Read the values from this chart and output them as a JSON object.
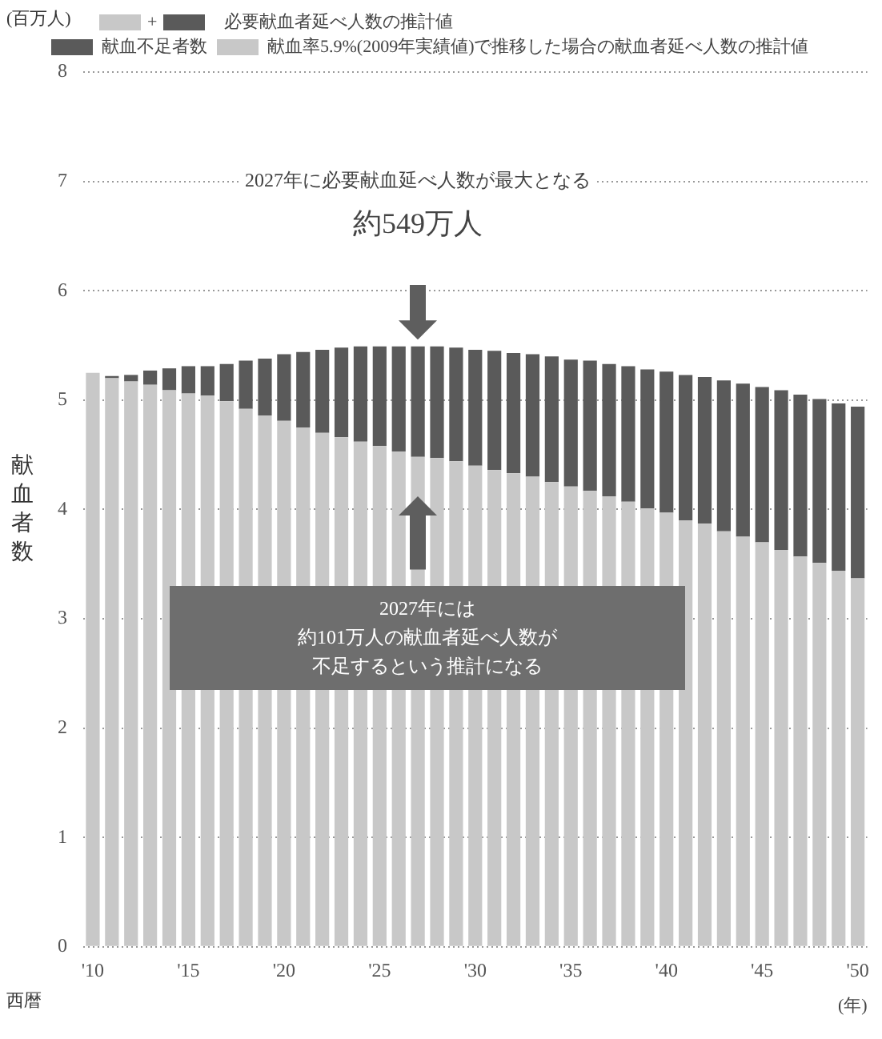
{
  "chart_data": {
    "type": "bar",
    "stacked": true,
    "ylabel": "献血者数",
    "xlabel": "(年)",
    "categories": [
      "'10",
      null,
      null,
      null,
      null,
      "'15",
      null,
      null,
      null,
      null,
      "'20",
      null,
      null,
      null,
      null,
      "'25",
      null,
      null,
      null,
      null,
      "'30",
      null,
      null,
      null,
      null,
      "'35",
      null,
      null,
      null,
      null,
      "'40",
      null,
      null,
      null,
      null,
      "'45",
      null,
      null,
      null,
      null,
      "'50"
    ],
    "series": [
      {
        "name": "献血率5.9%(2009年実績値)で推移した場合の献血者延べ人数の推計値",
        "color": "#c8c8c8",
        "values": [
          5.25,
          5.2,
          5.17,
          5.14,
          5.09,
          5.06,
          5.04,
          4.99,
          4.92,
          4.86,
          4.81,
          4.75,
          4.7,
          4.66,
          4.62,
          4.58,
          4.53,
          4.48,
          4.47,
          4.44,
          4.4,
          4.36,
          4.33,
          4.3,
          4.25,
          4.21,
          4.17,
          4.12,
          4.07,
          4.01,
          3.97,
          3.9,
          3.87,
          3.8,
          3.75,
          3.7,
          3.63,
          3.57,
          3.51,
          3.44,
          3.37
        ]
      },
      {
        "name": "献血不足者数",
        "color": "#5a5a5a",
        "values": [
          0,
          0.02,
          0.06,
          0.13,
          0.2,
          0.25,
          0.27,
          0.34,
          0.44,
          0.52,
          0.61,
          0.69,
          0.76,
          0.82,
          0.87,
          0.91,
          0.96,
          1.01,
          1.02,
          1.04,
          1.06,
          1.09,
          1.1,
          1.12,
          1.15,
          1.16,
          1.19,
          1.21,
          1.24,
          1.27,
          1.29,
          1.33,
          1.34,
          1.38,
          1.4,
          1.42,
          1.46,
          1.48,
          1.5,
          1.53,
          1.57
        ]
      }
    ],
    "ylim": [
      0,
      8
    ],
    "yticks": [
      0,
      1,
      2,
      3,
      4,
      5,
      6,
      7,
      8
    ],
    "grid": "y",
    "legend": "top left",
    "annotations": [
      "+",
      "必要献血者延べ人数の推計値",
      "(百万人)",
      "西暦",
      "2027年に必要献血延べ人数が最大となる",
      "約549万人",
      "2027年には",
      "約101万人の献血者延べ人数が",
      "不足するという推計になる"
    ]
  }
}
